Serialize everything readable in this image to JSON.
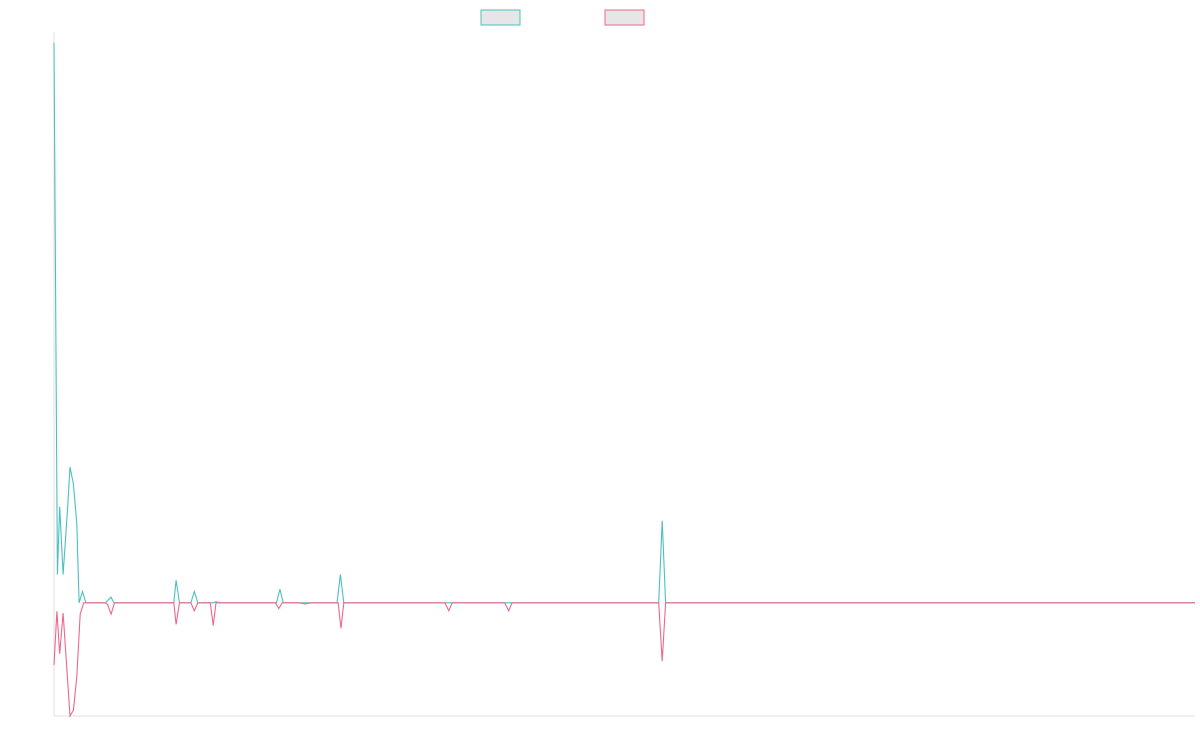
{
  "colors": {
    "series_a": "#4bc0c0",
    "series_b": "#f0668a",
    "legend_fill": "#e6e6e6",
    "axis": "#e0e0e0"
  },
  "chart_data": {
    "type": "line",
    "title": "",
    "xlabel": "",
    "ylabel": "",
    "grid": false,
    "legend_position": "top-center",
    "xlim": [
      0,
      200
    ],
    "ylim": [
      -20,
      100
    ],
    "series": [
      {
        "points": [
          [
            0,
            99
          ],
          [
            0.6,
            5
          ],
          [
            1,
            17
          ],
          [
            1.6,
            5
          ],
          [
            2.4,
            17
          ],
          [
            2.8,
            24
          ],
          [
            3.4,
            21
          ],
          [
            4,
            14
          ],
          [
            4.4,
            0
          ],
          [
            5,
            2
          ],
          [
            5.6,
            0
          ],
          [
            9,
            0
          ],
          [
            10,
            1
          ],
          [
            10.5,
            0
          ],
          [
            21,
            0
          ],
          [
            21.4,
            4
          ],
          [
            22,
            0
          ],
          [
            24,
            0
          ],
          [
            24.6,
            2
          ],
          [
            25.2,
            0
          ],
          [
            28,
            0
          ],
          [
            28.4,
            0.2
          ],
          [
            29,
            0
          ],
          [
            39,
            0
          ],
          [
            39.6,
            2.4
          ],
          [
            40.2,
            0
          ],
          [
            49.6,
            0
          ],
          [
            50.2,
            5
          ],
          [
            50.8,
            0
          ],
          [
            106,
            0
          ],
          [
            106.6,
            14.5
          ],
          [
            107.2,
            0
          ],
          [
            200,
            0
          ]
        ]
      },
      {
        "points": [
          [
            0,
            -11
          ],
          [
            0.5,
            -1.5
          ],
          [
            1,
            -9
          ],
          [
            1.6,
            -1.8
          ],
          [
            2.8,
            -20
          ],
          [
            3.4,
            -19
          ],
          [
            4,
            -13
          ],
          [
            4.6,
            -2
          ],
          [
            5.2,
            0
          ],
          [
            9,
            0
          ],
          [
            9.4,
            -0.3
          ],
          [
            10,
            -2
          ],
          [
            10.6,
            0
          ],
          [
            21,
            0
          ],
          [
            21.4,
            -3.8
          ],
          [
            22,
            0
          ],
          [
            24,
            0
          ],
          [
            24.6,
            -1.4
          ],
          [
            25.2,
            0
          ],
          [
            27.4,
            0
          ],
          [
            27.9,
            -4
          ],
          [
            28.4,
            0
          ],
          [
            38.8,
            0
          ],
          [
            39.4,
            -1
          ],
          [
            40,
            0
          ],
          [
            43,
            0
          ],
          [
            44,
            -0.2
          ],
          [
            45,
            0
          ],
          [
            49.8,
            0
          ],
          [
            50.3,
            -4.5
          ],
          [
            50.8,
            0
          ],
          [
            68.5,
            0
          ],
          [
            69.2,
            -1.4
          ],
          [
            69.8,
            0
          ],
          [
            79,
            0
          ],
          [
            79.7,
            -1.4
          ],
          [
            80.3,
            0
          ],
          [
            106,
            0
          ],
          [
            106.6,
            -10.3
          ],
          [
            107.2,
            0
          ],
          [
            200,
            0
          ]
        ]
      }
    ]
  }
}
